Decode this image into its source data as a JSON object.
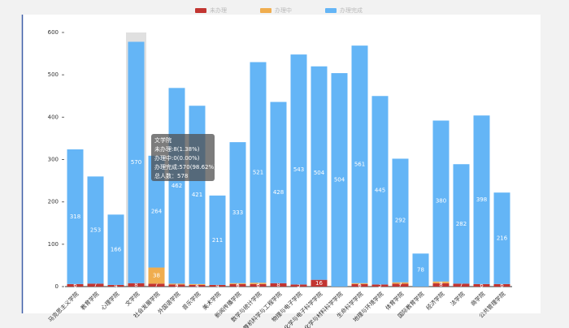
{
  "chart_data": {
    "type": "stacked_bar",
    "categories": [
      "马克思主义学院",
      "教育学院",
      "心理学院",
      "文学院",
      "社会发展学院",
      "外国语学院",
      "音乐学院",
      "美术学院",
      "新闻传播学院",
      "数学与统计学院",
      "计算机科学与工程学院",
      "物理与电子学院",
      "化学与电子科学学院",
      "化学与材料科学学院",
      "生命科学学院",
      "地理与环境学院",
      "体育学院",
      "国际教育学院",
      "经济学院",
      "法学院",
      "商学院",
      "公共管理学院"
    ],
    "series": [
      {
        "name": "未办理",
        "color": "#c23531",
        "values": [
          6,
          7,
          4,
          8,
          7,
          5,
          4,
          4,
          6,
          6,
          8,
          5,
          16,
          0,
          6,
          5,
          7,
          0,
          8,
          7,
          6,
          6
        ]
      },
      {
        "name": "办理中",
        "color": "#f0ad4e",
        "values": [
          0,
          0,
          0,
          0,
          38,
          2,
          2,
          0,
          2,
          3,
          0,
          0,
          0,
          0,
          2,
          0,
          3,
          0,
          4,
          0,
          0,
          0
        ]
      },
      {
        "name": "办理完成",
        "color": "#64b5f6",
        "values": [
          318,
          253,
          166,
          570,
          264,
          462,
          421,
          211,
          333,
          521,
          428,
          543,
          504,
          504,
          561,
          445,
          292,
          78,
          380,
          282,
          398,
          216
        ]
      }
    ],
    "ylim": [
      0,
      600
    ],
    "yticks": [
      0,
      100,
      200,
      300,
      400,
      500,
      600
    ],
    "tooltip": {
      "title": "文学院",
      "lines": [
        "未办理:8(1.38%)",
        "办理中:0(0.00%)",
        "办理完成:570(98.62%)",
        "总人数：578"
      ]
    }
  }
}
